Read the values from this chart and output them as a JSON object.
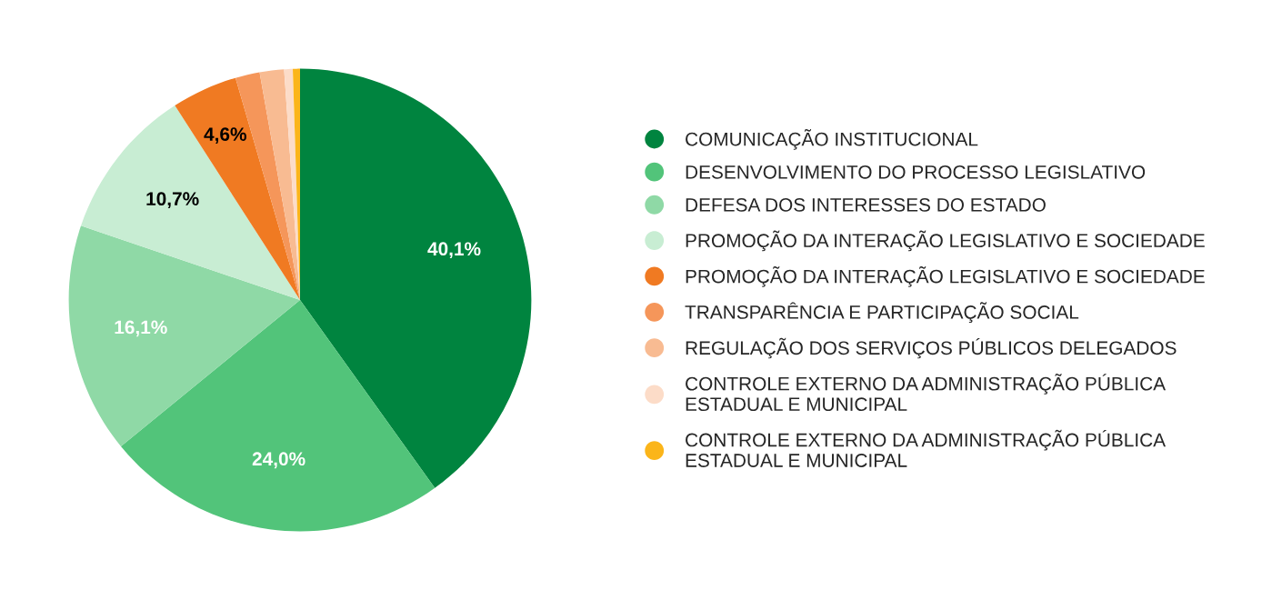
{
  "chart_data": {
    "type": "pie",
    "categories": [
      "COMUNICAÇÃO INSTITUCIONAL",
      "DESENVOLVIMENTO DO PROCESSO LEGISLATIVO",
      "DEFESA DOS INTERESSES DO ESTADO",
      "PROMOÇÃO DA INTERAÇÃO LEGISLATIVO E SOCIEDADE",
      "PROMOÇÃO DA INTERAÇÃO LEGISLATIVO E SOCIEDADE",
      "TRANSPARÊNCIA E PARTICIPAÇÃO SOCIAL",
      "REGULAÇÃO DOS SERVIÇOS PÚBLICOS DELEGADOS",
      "CONTROLE EXTERNO DA ADMINISTRAÇÃO PÚBLICA ESTADUAL E MUNICIPAL",
      "CONTROLE EXTERNO DA ADMINISTRAÇÃO PÚBLICA ESTADUAL E MUNICIPAL"
    ],
    "values": [
      40.1,
      24.0,
      16.1,
      10.7,
      4.6,
      1.7,
      1.7,
      0.6,
      0.5
    ],
    "colors": [
      "#00843f",
      "#52c47a",
      "#8fd9a6",
      "#c8edd3",
      "#f07a22",
      "#f5965a",
      "#f8bb92",
      "#fcdcc8",
      "#fbb51a"
    ],
    "value_labels": [
      "40,1%",
      "24,0%",
      "16,1%",
      "10,7%",
      "4,6%",
      null,
      null,
      null,
      null
    ],
    "legend": "right"
  }
}
